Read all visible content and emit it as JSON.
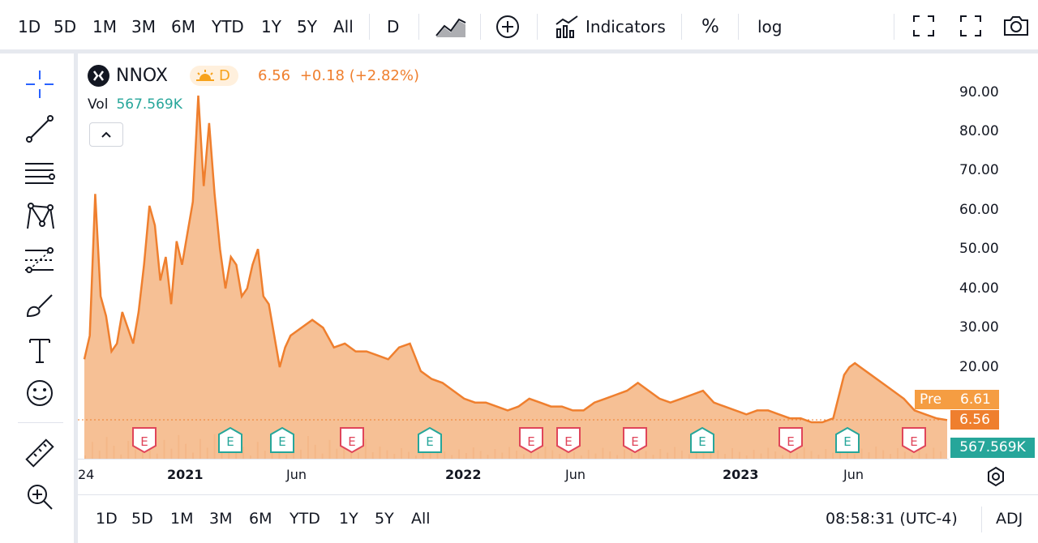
{
  "toolbar": {
    "intervals": [
      "1D",
      "5D",
      "1M",
      "3M",
      "6M",
      "YTD",
      "1Y",
      "5Y",
      "All"
    ],
    "resolution": "D",
    "indicators_label": "Indicators",
    "percent_label": "%",
    "log_label": "log"
  },
  "left_tools": [
    "crosshair-icon",
    "trend-line-icon",
    "horizontal-lines-icon",
    "pattern-icon",
    "fib-icon",
    "brush-icon",
    "text-icon",
    "emoji-icon",
    "ruler-icon",
    "zoom-in-icon"
  ],
  "legend": {
    "symbol": "NNOX",
    "session_badge": "D",
    "price": "6.56",
    "change": "+0.18 (+2.82%)",
    "volume_label": "Vol",
    "volume_value": "567.569K"
  },
  "price_axis": {
    "labels": [
      "90.00",
      "80.00",
      "70.00",
      "60.00",
      "50.00",
      "40.00",
      "30.00",
      "20.00"
    ],
    "pre_label": "Pre",
    "pre_value": "6.61",
    "last_value": "6.56",
    "volume_value": "567.569K"
  },
  "time_axis": {
    "labels": [
      "24",
      "2021",
      "Jun",
      "2022",
      "Jun",
      "2023",
      "Jun"
    ]
  },
  "bottom": {
    "ranges": [
      "1D",
      "5D",
      "1M",
      "3M",
      "6M",
      "YTD",
      "1Y",
      "5Y",
      "All"
    ],
    "clock": "08:58:31 (UTC-4)",
    "adj_label": "ADJ"
  },
  "earnings_marker_label": "E",
  "colors": {
    "line": "#ef7f2e",
    "area": "#f5b98a",
    "volume": "#26a69a",
    "earnings_red": "#e0455a",
    "earnings_green": "#26a69a"
  },
  "chart_data": {
    "type": "area",
    "series": [
      {
        "x": [
          "2020-08-21",
          "2020-08-28",
          "2020-09-04",
          "2020-09-11",
          "2020-09-18",
          "2020-09-25",
          "2020-10-02",
          "2020-10-09",
          "2020-10-16",
          "2020-10-23",
          "2020-10-30",
          "2020-11-06",
          "2020-11-13",
          "2020-11-20",
          "2020-11-27",
          "2020-12-04",
          "2020-12-11",
          "2020-12-18",
          "2020-12-25",
          "2021-01-01",
          "2021-01-08",
          "2021-01-15",
          "2021-01-22",
          "2021-01-29",
          "2021-02-05",
          "2021-02-12",
          "2021-02-19",
          "2021-02-26",
          "2021-03-05",
          "2021-03-12",
          "2021-03-19",
          "2021-03-26",
          "2021-04-02",
          "2021-04-09",
          "2021-04-16",
          "2021-04-23",
          "2021-04-30",
          "2021-05-07",
          "2021-05-14",
          "2021-05-28",
          "2021-06-11",
          "2021-06-25",
          "2021-07-09",
          "2021-07-23",
          "2021-08-06",
          "2021-08-20",
          "2021-09-03",
          "2021-09-17",
          "2021-10-01",
          "2021-10-15",
          "2021-10-29",
          "2021-11-12",
          "2021-11-26",
          "2021-12-10",
          "2021-12-24",
          "2022-01-07",
          "2022-01-21",
          "2022-02-04",
          "2022-02-18",
          "2022-03-04",
          "2022-03-18",
          "2022-04-01",
          "2022-04-15",
          "2022-04-29",
          "2022-05-13",
          "2022-05-27",
          "2022-06-10",
          "2022-06-24",
          "2022-07-08",
          "2022-07-22",
          "2022-08-05",
          "2022-08-19",
          "2022-09-02",
          "2022-09-16",
          "2022-09-30",
          "2022-10-14",
          "2022-10-28",
          "2022-11-11",
          "2022-11-25",
          "2022-12-09",
          "2022-12-23",
          "2023-01-06",
          "2023-01-20",
          "2023-02-03",
          "2023-02-17",
          "2023-03-03",
          "2023-03-17",
          "2023-03-31",
          "2023-04-14",
          "2023-04-28",
          "2023-05-05",
          "2023-05-12",
          "2023-05-19",
          "2023-06-02",
          "2023-06-16",
          "2023-06-30",
          "2023-07-14",
          "2023-07-28",
          "2023-08-11",
          "2023-08-25",
          "2023-09-08"
        ],
        "y": [
          22,
          28,
          64,
          38,
          33,
          24,
          26,
          34,
          30,
          26,
          34,
          46,
          61,
          56,
          42,
          48,
          36,
          52,
          46,
          54,
          62,
          89,
          66,
          82,
          64,
          50,
          40,
          48,
          46,
          38,
          40,
          46,
          50,
          38,
          36,
          28,
          20,
          25,
          28,
          30,
          32,
          30,
          25,
          26,
          24,
          24,
          23,
          22,
          25,
          26,
          19,
          17,
          16,
          14,
          12,
          11,
          11,
          10,
          9,
          10,
          12,
          11,
          10,
          10,
          9,
          9,
          11,
          12,
          13,
          14,
          16,
          14,
          12,
          11,
          12,
          13,
          14,
          11,
          10,
          9,
          8,
          9,
          9,
          8,
          7,
          7,
          6,
          6,
          7,
          18,
          20,
          21,
          20,
          18,
          16,
          14,
          12,
          9,
          8,
          7,
          6.56
        ]
      }
    ],
    "ylim": [
      0,
      95
    ],
    "grid": false,
    "legend": "top-left"
  }
}
